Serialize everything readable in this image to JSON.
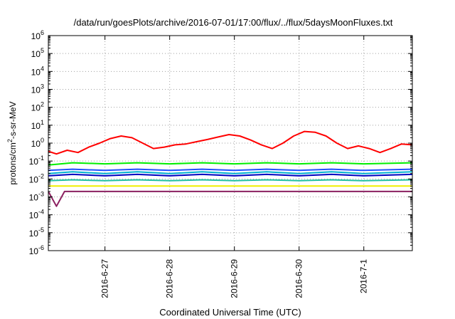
{
  "chart_data": {
    "type": "line",
    "title": "/data/run/goesPlots/archive/2016-07-01/17:00/flux/../flux/5daysMoonFluxes.txt",
    "xlabel": "Coordinated Universal Time (UTC)",
    "ylabel": "protons/cm²-s-sr-MeV",
    "yscale": "log",
    "ylim": [
      1e-06,
      1000000.0
    ],
    "xlim": [
      "2016-06-26T03:00",
      "2016-07-01T18:00"
    ],
    "grid": true,
    "legend": "none",
    "x_ticks": [
      {
        "label": "2016-6-27",
        "date": "2016-06-27"
      },
      {
        "label": "2016-6-28",
        "date": "2016-06-28"
      },
      {
        "label": "2016-6-29",
        "date": "2016-06-29"
      },
      {
        "label": "2016-6-30",
        "date": "2016-06-30"
      },
      {
        "label": "2016-7-1",
        "date": "2016-07-01"
      }
    ],
    "y_ticks": [
      {
        "base": "10",
        "exp": "6"
      },
      {
        "base": "10",
        "exp": "5"
      },
      {
        "base": "10",
        "exp": "4"
      },
      {
        "base": "10",
        "exp": "3"
      },
      {
        "base": "10",
        "exp": "2"
      },
      {
        "base": "10",
        "exp": "1"
      },
      {
        "base": "10",
        "exp": "0"
      },
      {
        "base": "10",
        "exp": "-1"
      },
      {
        "base": "10",
        "exp": "-2"
      },
      {
        "base": "10",
        "exp": "-3"
      },
      {
        "base": "10",
        "exp": "-4"
      },
      {
        "base": "10",
        "exp": "-5"
      },
      {
        "base": "10",
        "exp": "-6"
      }
    ],
    "series": [
      {
        "color": "#ff0000",
        "points": [
          [
            "2016-06-26T03:00",
            0.35
          ],
          [
            "2016-06-26T06:00",
            0.25
          ],
          [
            "2016-06-26T10:00",
            0.4
          ],
          [
            "2016-06-26T14:00",
            0.3
          ],
          [
            "2016-06-26T18:00",
            0.6
          ],
          [
            "2016-06-26T22:00",
            1.0
          ],
          [
            "2016-06-27T02:00",
            1.8
          ],
          [
            "2016-06-27T06:00",
            2.5
          ],
          [
            "2016-06-27T10:00",
            2.0
          ],
          [
            "2016-06-27T14:00",
            1.0
          ],
          [
            "2016-06-27T18:00",
            0.5
          ],
          [
            "2016-06-27T22:00",
            0.6
          ],
          [
            "2016-06-28T02:00",
            0.8
          ],
          [
            "2016-06-28T06:00",
            0.9
          ],
          [
            "2016-06-28T10:00",
            1.2
          ],
          [
            "2016-06-28T14:00",
            1.6
          ],
          [
            "2016-06-28T18:00",
            2.2
          ],
          [
            "2016-06-28T22:00",
            3.0
          ],
          [
            "2016-06-29T02:00",
            2.5
          ],
          [
            "2016-06-29T06:00",
            1.5
          ],
          [
            "2016-06-29T10:00",
            0.8
          ],
          [
            "2016-06-29T14:00",
            0.5
          ],
          [
            "2016-06-29T18:00",
            1.0
          ],
          [
            "2016-06-29T22:00",
            2.5
          ],
          [
            "2016-06-30T02:00",
            4.5
          ],
          [
            "2016-06-30T06:00",
            4.0
          ],
          [
            "2016-06-30T10:00",
            2.5
          ],
          [
            "2016-06-30T14:00",
            1.0
          ],
          [
            "2016-06-30T18:00",
            0.5
          ],
          [
            "2016-06-30T22:00",
            0.7
          ],
          [
            "2016-07-01T02:00",
            0.5
          ],
          [
            "2016-07-01T06:00",
            0.3
          ],
          [
            "2016-07-01T10:00",
            0.5
          ],
          [
            "2016-07-01T14:00",
            0.9
          ],
          [
            "2016-07-01T18:00",
            0.8
          ]
        ]
      },
      {
        "color": "#00ee00",
        "points": [
          [
            "2016-06-26T03:00",
            0.06
          ],
          [
            "2016-06-26T12:00",
            0.08
          ],
          [
            "2016-06-27T00:00",
            0.07
          ],
          [
            "2016-06-27T12:00",
            0.08
          ],
          [
            "2016-06-28T00:00",
            0.07
          ],
          [
            "2016-06-28T12:00",
            0.08
          ],
          [
            "2016-06-29T00:00",
            0.07
          ],
          [
            "2016-06-29T12:00",
            0.08
          ],
          [
            "2016-06-30T00:00",
            0.07
          ],
          [
            "2016-06-30T12:00",
            0.08
          ],
          [
            "2016-07-01T00:00",
            0.07
          ],
          [
            "2016-07-01T18:00",
            0.08
          ]
        ]
      },
      {
        "color": "#00b0d0",
        "points": [
          [
            "2016-06-26T03:00",
            0.02
          ],
          [
            "2016-06-26T12:00",
            0.025
          ],
          [
            "2016-06-27T00:00",
            0.02
          ],
          [
            "2016-06-27T12:00",
            0.025
          ],
          [
            "2016-06-28T00:00",
            0.02
          ],
          [
            "2016-06-28T12:00",
            0.025
          ],
          [
            "2016-06-29T00:00",
            0.02
          ],
          [
            "2016-06-29T12:00",
            0.025
          ],
          [
            "2016-06-30T00:00",
            0.02
          ],
          [
            "2016-06-30T12:00",
            0.025
          ],
          [
            "2016-07-01T00:00",
            0.02
          ],
          [
            "2016-07-01T18:00",
            0.025
          ]
        ]
      },
      {
        "color": "#2050ff",
        "points": [
          [
            "2016-06-26T03:00",
            0.03
          ],
          [
            "2016-06-26T12:00",
            0.035
          ],
          [
            "2016-06-27T00:00",
            0.03
          ],
          [
            "2016-06-27T12:00",
            0.035
          ],
          [
            "2016-06-28T00:00",
            0.03
          ],
          [
            "2016-06-28T12:00",
            0.035
          ],
          [
            "2016-06-29T00:00",
            0.03
          ],
          [
            "2016-06-29T12:00",
            0.035
          ],
          [
            "2016-06-30T00:00",
            0.03
          ],
          [
            "2016-06-30T12:00",
            0.035
          ],
          [
            "2016-07-01T00:00",
            0.03
          ],
          [
            "2016-07-01T18:00",
            0.035
          ]
        ]
      },
      {
        "color": "#0000c0",
        "points": [
          [
            "2016-06-26T03:00",
            0.015
          ],
          [
            "2016-06-26T12:00",
            0.018
          ],
          [
            "2016-06-27T00:00",
            0.015
          ],
          [
            "2016-06-27T12:00",
            0.018
          ],
          [
            "2016-06-28T00:00",
            0.015
          ],
          [
            "2016-06-28T12:00",
            0.018
          ],
          [
            "2016-06-29T00:00",
            0.015
          ],
          [
            "2016-06-29T12:00",
            0.018
          ],
          [
            "2016-06-30T00:00",
            0.015
          ],
          [
            "2016-06-30T12:00",
            0.018
          ],
          [
            "2016-07-01T00:00",
            0.015
          ],
          [
            "2016-07-01T18:00",
            0.018
          ]
        ]
      },
      {
        "color": "#20c0a0",
        "points": [
          [
            "2016-06-26T03:00",
            0.008
          ],
          [
            "2016-06-26T12:00",
            0.009
          ],
          [
            "2016-06-27T00:00",
            0.008
          ],
          [
            "2016-06-27T12:00",
            0.009
          ],
          [
            "2016-06-28T00:00",
            0.008
          ],
          [
            "2016-06-28T12:00",
            0.009
          ],
          [
            "2016-06-29T00:00",
            0.008
          ],
          [
            "2016-06-29T12:00",
            0.009
          ],
          [
            "2016-06-30T00:00",
            0.008
          ],
          [
            "2016-06-30T12:00",
            0.009
          ],
          [
            "2016-07-01T00:00",
            0.008
          ],
          [
            "2016-07-01T18:00",
            0.009
          ]
        ]
      },
      {
        "color": "#f0f000",
        "points": [
          [
            "2016-06-26T03:00",
            0.004
          ],
          [
            "2016-06-27T00:00",
            0.004
          ],
          [
            "2016-06-28T00:00",
            0.004
          ],
          [
            "2016-06-29T00:00",
            0.004
          ],
          [
            "2016-06-30T00:00",
            0.004
          ],
          [
            "2016-07-01T00:00",
            0.004
          ],
          [
            "2016-07-01T18:00",
            0.004
          ]
        ]
      },
      {
        "color": "#8b2060",
        "points": [
          [
            "2016-06-26T03:00",
            0.002
          ],
          [
            "2016-06-26T06:00",
            0.0003
          ],
          [
            "2016-06-26T09:00",
            0.002
          ],
          [
            "2016-06-27T00:00",
            0.002
          ],
          [
            "2016-06-28T00:00",
            0.002
          ],
          [
            "2016-06-29T00:00",
            0.002
          ],
          [
            "2016-06-30T00:00",
            0.002
          ],
          [
            "2016-07-01T00:00",
            0.002
          ],
          [
            "2016-07-01T18:00",
            0.002
          ]
        ]
      }
    ]
  }
}
